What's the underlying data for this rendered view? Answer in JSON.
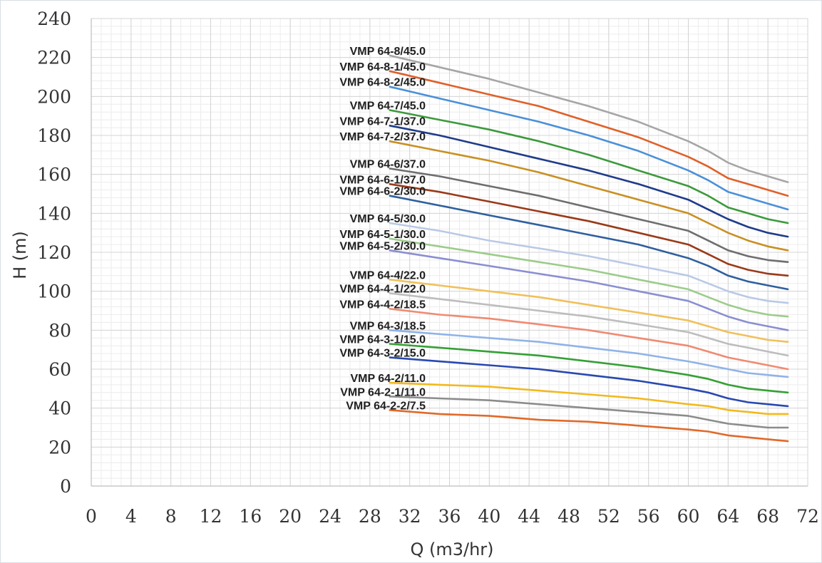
{
  "chart_data": {
    "type": "line",
    "xlabel": "Q (m3/hr)",
    "ylabel": "H (m)",
    "xlim": [
      0,
      72
    ],
    "ylim": [
      0,
      240
    ],
    "x_ticks": [
      0,
      4,
      8,
      12,
      16,
      20,
      24,
      28,
      32,
      36,
      40,
      44,
      48,
      52,
      56,
      60,
      64,
      68,
      72
    ],
    "y_ticks": [
      0,
      20,
      40,
      60,
      80,
      100,
      120,
      140,
      160,
      180,
      200,
      220,
      240
    ],
    "grid": true,
    "x": [
      30,
      35,
      40,
      45,
      50,
      55,
      60,
      62,
      64,
      66,
      68,
      70
    ],
    "series": [
      {
        "name": "VMP 64-8/45.0",
        "color": "#a6a6a6",
        "values": [
          221,
          215,
          209,
          202,
          195,
          187,
          177,
          172,
          166,
          162,
          159,
          156
        ]
      },
      {
        "name": "VMP 64-8-1/45.0",
        "color": "#e0602a",
        "values": [
          213,
          207,
          201,
          195,
          187,
          179,
          169,
          164,
          158,
          155,
          152,
          149
        ]
      },
      {
        "name": "VMP 64-8-2/45.0",
        "color": "#4a90d9",
        "values": [
          205,
          199,
          193,
          187,
          180,
          172,
          162,
          157,
          151,
          148,
          145,
          142
        ]
      },
      {
        "name": "VMP 64-7/45.0",
        "color": "#3c9a3c",
        "values": [
          193,
          188,
          183,
          177,
          170,
          162,
          154,
          149,
          143,
          140,
          137,
          135
        ]
      },
      {
        "name": "VMP 64-7-1/37.0",
        "color": "#1f3c8a",
        "values": [
          185,
          180,
          174,
          168,
          162,
          155,
          147,
          142,
          137,
          133,
          130,
          128
        ]
      },
      {
        "name": "VMP 64-7-2/37.0",
        "color": "#c99022",
        "values": [
          177,
          172,
          167,
          161,
          154,
          147,
          140,
          135,
          130,
          126,
          123,
          121
        ]
      },
      {
        "name": "VMP 64-6/37.0",
        "color": "#6e6e6e",
        "values": [
          163,
          159,
          154,
          149,
          143,
          137,
          131,
          126,
          121,
          118,
          116,
          115
        ]
      },
      {
        "name": "VMP 64-6-1/37.0",
        "color": "#9a3a1a",
        "values": [
          155,
          151,
          146,
          141,
          136,
          130,
          124,
          119,
          114,
          111,
          109,
          108
        ]
      },
      {
        "name": "VMP 64-6-2/30.0",
        "color": "#2f5f9e",
        "values": [
          149,
          144,
          139,
          134,
          129,
          124,
          117,
          113,
          108,
          105,
          103,
          101
        ]
      },
      {
        "name": "VMP 64-5/30.0",
        "color": "#b9c9e6",
        "values": [
          135,
          131,
          126,
          122,
          118,
          113,
          108,
          104,
          100,
          97,
          95,
          94
        ]
      },
      {
        "name": "VMP 64-5-1/30.0",
        "color": "#9ccc8a",
        "values": [
          127,
          123,
          119,
          115,
          111,
          106,
          101,
          97,
          93,
          90,
          88,
          87
        ]
      },
      {
        "name": "VMP 64-5-2/30.0",
        "color": "#8a8fd1",
        "values": [
          121,
          117,
          113,
          109,
          105,
          100,
          95,
          91,
          87,
          84,
          82,
          80
        ]
      },
      {
        "name": "VMP 64-4/22.0",
        "color": "#f0c05a",
        "values": [
          106,
          103,
          100,
          97,
          93,
          89,
          85,
          82,
          79,
          77,
          75,
          74
        ]
      },
      {
        "name": "VMP 64-4-1/22.0",
        "color": "#bdbdbd",
        "values": [
          99,
          96,
          93,
          90,
          87,
          83,
          79,
          76,
          73,
          71,
          69,
          67
        ]
      },
      {
        "name": "VMP 64-4-2/18.5",
        "color": "#f08a72",
        "values": [
          91,
          88,
          86,
          83,
          80,
          76,
          72,
          69,
          66,
          64,
          62,
          60
        ]
      },
      {
        "name": "VMP 64-3/18.5",
        "color": "#8fb3e8",
        "values": [
          80,
          78,
          76,
          74,
          71,
          68,
          64,
          62,
          60,
          58,
          57,
          56
        ]
      },
      {
        "name": "VMP 64-3-1/15.0",
        "color": "#35a035",
        "values": [
          73,
          71,
          69,
          67,
          64,
          61,
          57,
          55,
          52,
          50,
          49,
          48
        ]
      },
      {
        "name": "VMP 64-3-2/15.0",
        "color": "#2948b0",
        "values": [
          66,
          64,
          62,
          60,
          57,
          54,
          50,
          48,
          45,
          43,
          42,
          41
        ]
      },
      {
        "name": "VMP 64-2/11.0",
        "color": "#f2b91e",
        "values": [
          53,
          52,
          51,
          49,
          47,
          45,
          42,
          41,
          39,
          38,
          37,
          37
        ]
      },
      {
        "name": "VMP 64-2-1/11.0",
        "color": "#8c8c8c",
        "values": [
          46,
          45,
          44,
          42,
          40,
          38,
          36,
          34,
          32,
          31,
          30,
          30
        ]
      },
      {
        "name": "VMP 64-2-2/7.5",
        "color": "#e06a2a",
        "values": [
          39,
          37,
          36,
          34,
          33,
          31,
          29,
          28,
          26,
          25,
          24,
          23
        ]
      }
    ]
  }
}
